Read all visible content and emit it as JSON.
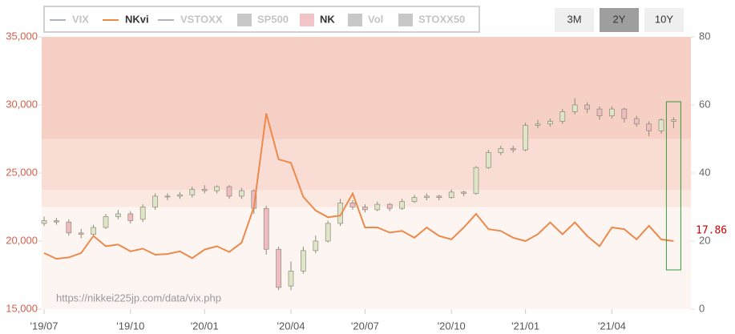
{
  "chart_data": {
    "type": "candlestick-line",
    "legend": [
      {
        "name": "VIX",
        "kind": "line",
        "color": "#b0b4bc",
        "active": false
      },
      {
        "name": "NKvi",
        "kind": "line",
        "color": "#ec8a4c",
        "active": true
      },
      {
        "name": "VSTOXX",
        "kind": "line",
        "color": "#b0b4bc",
        "active": false
      },
      {
        "name": "SP500",
        "kind": "box",
        "color": "#c8c8c8",
        "active": false
      },
      {
        "name": "NK",
        "kind": "box",
        "color": "#f2c4c8",
        "active": true
      },
      {
        "name": "Vol",
        "kind": "box",
        "color": "#c8c8c8",
        "active": false
      },
      {
        "name": "STOXX50",
        "kind": "box",
        "color": "#c8c8c8",
        "active": false
      }
    ],
    "range_buttons": [
      "3M",
      "2Y",
      "10Y"
    ],
    "selected_button": 1,
    "source_url": "https://nikkei225jp.com/data/vix.php",
    "annotation": "17.86",
    "categories": [
      "'19/07",
      null,
      null,
      null,
      null,
      null,
      null,
      "'19/10",
      null,
      null,
      null,
      null,
      null,
      "'20/01",
      null,
      null,
      null,
      null,
      null,
      null,
      "'20/04",
      null,
      null,
      null,
      null,
      null,
      "'20/07",
      null,
      null,
      null,
      null,
      null,
      null,
      "'20/10",
      null,
      null,
      null,
      null,
      null,
      "'21/01",
      null,
      null,
      null,
      null,
      null,
      null,
      "'21/04",
      null,
      null,
      null,
      null,
      null
    ],
    "ylim": [
      15000,
      35000
    ],
    "yticks": [
      {
        "value": 15000,
        "label": "15,000"
      },
      {
        "value": 20000,
        "label": "20,000"
      },
      {
        "value": 25000,
        "label": "25,000"
      },
      {
        "value": 30000,
        "label": "30,000"
      },
      {
        "value": 35000,
        "label": "35,000"
      }
    ],
    "y2lim": [
      0,
      80
    ],
    "y2ticks": [
      0,
      20,
      40,
      60,
      80
    ],
    "bands": [
      {
        "from": 0,
        "to": 30,
        "color": "#fdf5f2"
      },
      {
        "from": 30,
        "to": 35,
        "color": "#fbe8e1"
      },
      {
        "from": 35,
        "to": 50,
        "color": "#f9ddd4"
      },
      {
        "from": 50,
        "to": 80,
        "color": "#f6d0c4"
      }
    ],
    "candles": {
      "name": "NK",
      "up_color": "#dfe6c8",
      "down_color": "#f0bcc2",
      "edge_color": "#8a8a78",
      "open": [
        21300,
        21500,
        21400,
        20600,
        20500,
        21000,
        21800,
        22000,
        21600,
        22500,
        23300,
        23300,
        23400,
        23800,
        23700,
        24000,
        23300,
        23700,
        22400,
        19400,
        16700,
        17800,
        19300,
        20000,
        21300,
        22800,
        22500,
        22300,
        22700,
        22400,
        22900,
        23200,
        23300,
        23200,
        23600,
        23500,
        25400,
        26500,
        26800,
        26700,
        28500,
        28600,
        28800,
        29500,
        30000,
        29700,
        29200,
        29700,
        29000,
        28600,
        28100,
        28800
      ],
      "high": [
        21800,
        21700,
        21600,
        20900,
        21200,
        22000,
        22300,
        22200,
        22700,
        23500,
        23500,
        23600,
        24000,
        24100,
        24100,
        24100,
        23900,
        23800,
        22600,
        19600,
        18500,
        19600,
        20400,
        21500,
        23100,
        23000,
        22700,
        22900,
        22800,
        23100,
        23400,
        23500,
        23400,
        23800,
        23700,
        25500,
        26700,
        27000,
        27000,
        28700,
        28900,
        29000,
        29700,
        30500,
        30200,
        29900,
        29900,
        29800,
        29200,
        28800,
        29000,
        29100
      ],
      "low": [
        21100,
        21200,
        20400,
        20200,
        20300,
        20900,
        21600,
        21300,
        21400,
        22300,
        23000,
        23100,
        23200,
        23500,
        23500,
        23100,
        23100,
        22000,
        19000,
        16400,
        16400,
        17600,
        19100,
        19900,
        21100,
        22300,
        22100,
        22200,
        22200,
        22300,
        22800,
        23000,
        23000,
        23100,
        23300,
        23400,
        25300,
        26300,
        26500,
        26600,
        28300,
        28400,
        28600,
        29300,
        29400,
        28900,
        29000,
        28700,
        28400,
        27700,
        27900,
        28300
      ],
      "close": [
        21500,
        21400,
        20600,
        20500,
        21000,
        21800,
        22000,
        21500,
        22500,
        23300,
        23300,
        23400,
        23800,
        23700,
        24000,
        23300,
        23700,
        22400,
        19400,
        16600,
        17800,
        19300,
        20000,
        21300,
        22800,
        22500,
        22300,
        22700,
        22400,
        22900,
        23200,
        23300,
        23200,
        23600,
        23500,
        25400,
        26500,
        26800,
        26700,
        28500,
        28600,
        28800,
        29500,
        30000,
        29700,
        29200,
        29700,
        29000,
        28600,
        28100,
        28900,
        28900
      ]
    },
    "series": [
      {
        "name": "NKvi",
        "axis": "y2",
        "color": "#ec8a4c",
        "values": [
          16.5,
          14.8,
          15.2,
          16.5,
          21.5,
          18.5,
          19.0,
          17.0,
          17.8,
          16.0,
          16.2,
          17.0,
          15.0,
          17.5,
          18.5,
          16.8,
          19.5,
          30.0,
          57.5,
          44.0,
          43.0,
          33.0,
          29.0,
          27.0,
          27.5,
          34.0,
          24.0,
          24.0,
          22.5,
          23.0,
          21.0,
          24.0,
          21.5,
          20.5,
          24.0,
          28.0,
          23.5,
          23.0,
          21.0,
          20.0,
          22.0,
          25.5,
          22.0,
          25.5,
          21.5,
          18.5,
          24.0,
          23.5,
          20.5,
          24.5,
          20.5,
          20.0
        ]
      }
    ]
  }
}
